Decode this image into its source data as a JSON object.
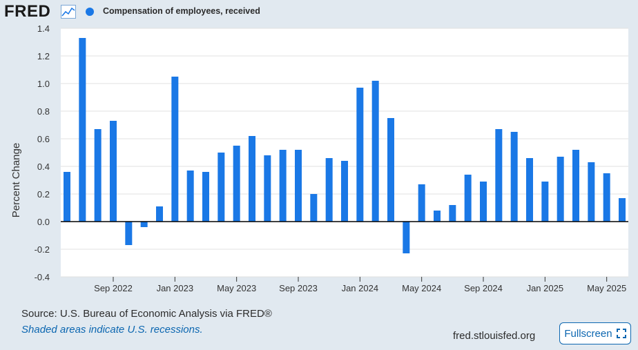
{
  "header": {
    "logo_text": "FRED",
    "logo_icon": "line-chart-icon",
    "series_label": "Compensation of employees, received",
    "series_color": "#1a78e6"
  },
  "footer": {
    "source": "Source: U.S. Bureau of Economic Analysis via FRED®",
    "note": "Shaded areas indicate U.S. recessions.",
    "site": "fred.stlouisfed.org",
    "fullscreen_label": "Fullscreen",
    "fullscreen_icon": "expand-icon"
  },
  "chart_data": {
    "type": "bar",
    "ylabel": "Percent Change",
    "ylim": [
      -0.4,
      1.4
    ],
    "yticks": [
      "1.4",
      "1.2",
      "1.0",
      "0.8",
      "0.6",
      "0.4",
      "0.2",
      "0.0",
      "-0.2",
      "-0.4"
    ],
    "ytick_values": [
      1.4,
      1.2,
      1.0,
      0.8,
      0.6,
      0.4,
      0.2,
      0.0,
      -0.2,
      -0.4
    ],
    "grid": true,
    "legend_position": "top-left",
    "x_months": [
      "2022-06",
      "2022-07",
      "2022-08",
      "2022-09",
      "2022-10",
      "2022-11",
      "2022-12",
      "2023-01",
      "2023-02",
      "2023-03",
      "2023-04",
      "2023-05",
      "2023-06",
      "2023-07",
      "2023-08",
      "2023-09",
      "2023-10",
      "2023-11",
      "2023-12",
      "2024-01",
      "2024-02",
      "2024-03",
      "2024-04",
      "2024-05",
      "2024-06",
      "2024-07",
      "2024-08",
      "2024-09",
      "2024-10",
      "2024-11",
      "2024-12",
      "2025-01",
      "2025-02",
      "2025-03",
      "2025-04",
      "2025-05",
      "2025-06"
    ],
    "xtick_labels": [
      "Sep 2022",
      "Jan 2023",
      "May 2023",
      "Sep 2023",
      "Jan 2024",
      "May 2024",
      "Sep 2024",
      "Jan 2025",
      "May 2025"
    ],
    "xtick_months": [
      "2022-09",
      "2023-01",
      "2023-05",
      "2023-09",
      "2024-01",
      "2024-05",
      "2024-09",
      "2025-01",
      "2025-05"
    ],
    "series": [
      {
        "color": "#1a78e6",
        "values": [
          0.36,
          1.33,
          0.67,
          0.73,
          -0.17,
          -0.04,
          0.11,
          1.05,
          0.37,
          0.36,
          0.5,
          0.55,
          0.62,
          0.48,
          0.52,
          0.52,
          0.2,
          0.46,
          0.44,
          0.97,
          1.02,
          0.75,
          -0.23,
          0.27,
          0.08,
          0.12,
          0.34,
          0.29,
          0.67,
          0.65,
          0.46,
          0.29,
          0.47,
          0.52,
          0.43,
          0.35,
          0.17
        ]
      }
    ]
  }
}
